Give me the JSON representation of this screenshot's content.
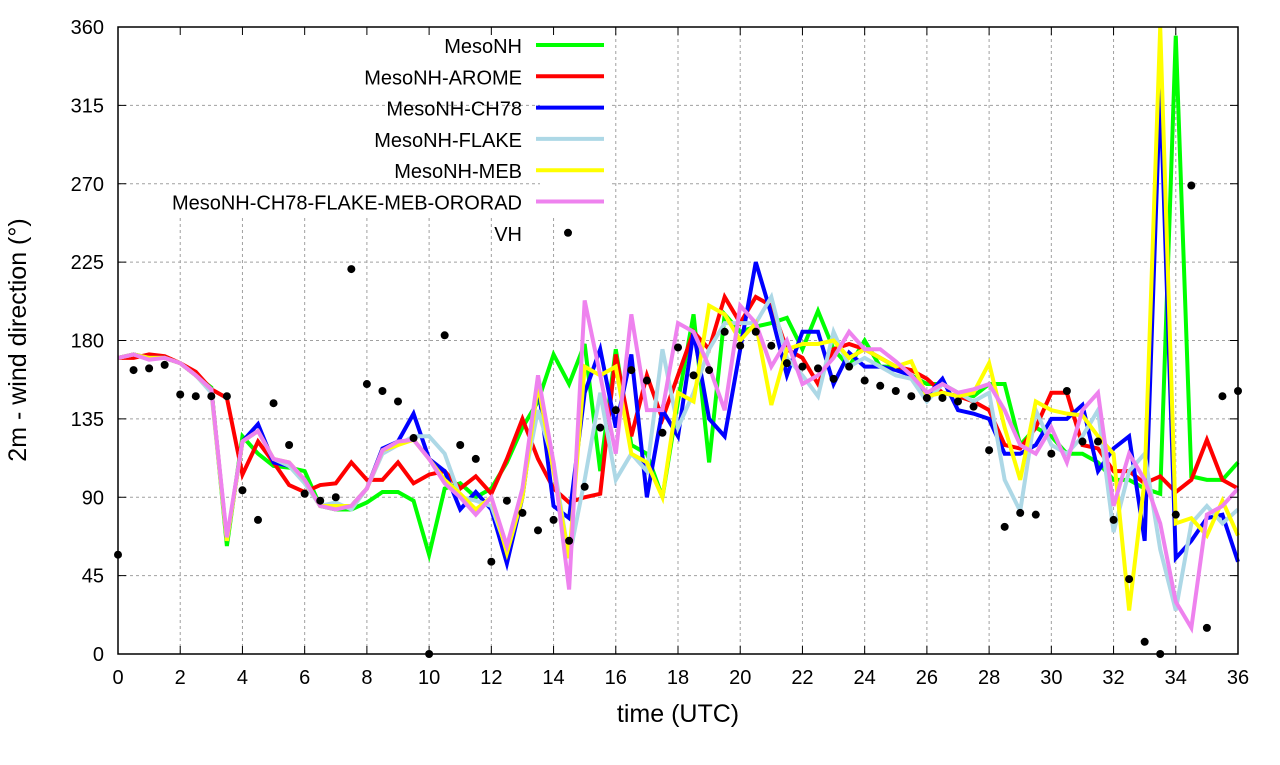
{
  "chart_data": {
    "type": "line",
    "title": "",
    "xlabel": "time (UTC)",
    "ylabel": "2m - wind direction (°)",
    "xlim": [
      0,
      36
    ],
    "ylim": [
      0,
      360
    ],
    "xticks": [
      0,
      2,
      4,
      6,
      8,
      10,
      12,
      14,
      16,
      18,
      20,
      22,
      24,
      26,
      28,
      30,
      32,
      34,
      36
    ],
    "yticks": [
      0,
      45,
      90,
      135,
      180,
      225,
      270,
      315,
      360
    ],
    "grid": true,
    "legend_position": "top-left",
    "x_step": 0.5,
    "series": [
      {
        "name": "MesoNH",
        "color": "#00ff00",
        "values": [
          170,
          172,
          170,
          170,
          167,
          160,
          153,
          62,
          125,
          115,
          108,
          107,
          105,
          85,
          83,
          83,
          87,
          93,
          93,
          88,
          57,
          95,
          98,
          90,
          95,
          110,
          130,
          145,
          172,
          155,
          178,
          105,
          175,
          120,
          115,
          90,
          145,
          195,
          110,
          195,
          185,
          188,
          190,
          193,
          175,
          197,
          175,
          165,
          180,
          165,
          165,
          160,
          155,
          155,
          150,
          148,
          155,
          155,
          120,
          130,
          125,
          115,
          115,
          110,
          100,
          100,
          95,
          92,
          355,
          102,
          100,
          100,
          110
        ]
      },
      {
        "name": "MesoNH-AROME",
        "color": "#ff0000",
        "values": [
          170,
          170,
          172,
          171,
          167,
          162,
          152,
          147,
          103,
          122,
          110,
          97,
          93,
          97,
          98,
          110,
          100,
          100,
          110,
          98,
          103,
          105,
          95,
          102,
          92,
          112,
          135,
          112,
          95,
          87,
          90,
          92,
          172,
          125,
          160,
          135,
          160,
          185,
          175,
          205,
          190,
          205,
          200,
          175,
          170,
          155,
          175,
          178,
          175,
          170,
          165,
          163,
          158,
          150,
          148,
          145,
          140,
          120,
          118,
          130,
          150,
          150,
          120,
          118,
          105,
          105,
          98,
          102,
          93,
          100,
          123,
          100,
          95
        ]
      },
      {
        "name": "MesoNH-CH78",
        "color": "#0000ff",
        "values": [
          170,
          172,
          170,
          170,
          167,
          160,
          152,
          65,
          122,
          132,
          110,
          108,
          100,
          85,
          85,
          85,
          95,
          118,
          122,
          138,
          112,
          105,
          83,
          93,
          83,
          52,
          90,
          155,
          85,
          78,
          150,
          175,
          130,
          172,
          90,
          140,
          125,
          185,
          135,
          125,
          175,
          225,
          195,
          160,
          185,
          185,
          155,
          173,
          165,
          165,
          163,
          160,
          148,
          158,
          140,
          138,
          135,
          115,
          115,
          120,
          135,
          135,
          143,
          105,
          118,
          125,
          65,
          325,
          55,
          65,
          78,
          80,
          53
        ]
      },
      {
        "name": "MesoNH-FLAKE",
        "color": "#add8e6",
        "values": [
          170,
          172,
          170,
          170,
          167,
          160,
          150,
          65,
          122,
          128,
          112,
          108,
          98,
          85,
          87,
          83,
          95,
          115,
          120,
          125,
          125,
          115,
          90,
          88,
          85,
          60,
          95,
          140,
          110,
          55,
          100,
          150,
          100,
          115,
          105,
          175,
          130,
          150,
          175,
          190,
          190,
          190,
          205,
          170,
          160,
          148,
          185,
          165,
          170,
          165,
          160,
          158,
          145,
          155,
          150,
          145,
          150,
          100,
          82,
          140,
          120,
          115,
          125,
          140,
          70,
          105,
          115,
          60,
          25,
          75,
          85,
          75,
          83
        ]
      },
      {
        "name": "MesoNH-MEB",
        "color": "#ffff00",
        "values": [
          170,
          172,
          170,
          170,
          167,
          160,
          152,
          65,
          122,
          128,
          112,
          110,
          100,
          85,
          85,
          85,
          95,
          117,
          120,
          123,
          112,
          100,
          92,
          83,
          90,
          58,
          90,
          155,
          105,
          55,
          165,
          160,
          165,
          115,
          110,
          90,
          150,
          145,
          200,
          195,
          180,
          190,
          143,
          175,
          178,
          178,
          180,
          170,
          175,
          170,
          165,
          168,
          148,
          150,
          148,
          150,
          167,
          130,
          100,
          145,
          140,
          138,
          137,
          125,
          115,
          25,
          100,
          360,
          75,
          78,
          68,
          88,
          68
        ]
      },
      {
        "name": "MesoNH-CH78-FLAKE-MEB-ORORAD",
        "color": "#ee82ee",
        "values": [
          170,
          172,
          169,
          170,
          167,
          160,
          152,
          67,
          122,
          128,
          112,
          110,
          100,
          85,
          83,
          85,
          95,
          117,
          122,
          123,
          112,
          98,
          90,
          80,
          90,
          62,
          95,
          160,
          110,
          37,
          203,
          160,
          115,
          195,
          140,
          140,
          190,
          185,
          165,
          140,
          200,
          190,
          165,
          180,
          155,
          160,
          170,
          185,
          175,
          175,
          168,
          160,
          150,
          155,
          150,
          152,
          155,
          140,
          120,
          115,
          130,
          110,
          140,
          150,
          85,
          115,
          100,
          75,
          30,
          15,
          80,
          85,
          95
        ]
      }
    ],
    "points": {
      "name": "VH",
      "color": "#000000",
      "values": [
        [
          0,
          57
        ],
        [
          0.5,
          163
        ],
        [
          1,
          164
        ],
        [
          1.5,
          166
        ],
        [
          2,
          149
        ],
        [
          2.5,
          148
        ],
        [
          3,
          148
        ],
        [
          3.5,
          148
        ],
        [
          4,
          94
        ],
        [
          4.5,
          77
        ],
        [
          5,
          144
        ],
        [
          5.5,
          120
        ],
        [
          6,
          92
        ],
        [
          6.5,
          88
        ],
        [
          7,
          90
        ],
        [
          7.5,
          221
        ],
        [
          8,
          155
        ],
        [
          8.5,
          151
        ],
        [
          9,
          145
        ],
        [
          9.5,
          124
        ],
        [
          10,
          0
        ],
        [
          10.5,
          183
        ],
        [
          11,
          120
        ],
        [
          11.5,
          112
        ],
        [
          12,
          53
        ],
        [
          12.5,
          88
        ],
        [
          13,
          81
        ],
        [
          13.5,
          71
        ],
        [
          14,
          77
        ],
        [
          14.5,
          65
        ],
        [
          15,
          96
        ],
        [
          15.5,
          130
        ],
        [
          16,
          140
        ],
        [
          16.5,
          163
        ],
        [
          17,
          157
        ],
        [
          17.5,
          127
        ],
        [
          18,
          176
        ],
        [
          18.5,
          160
        ],
        [
          19,
          163
        ],
        [
          19.5,
          185
        ],
        [
          20,
          177
        ],
        [
          20.5,
          185
        ],
        [
          21,
          177
        ],
        [
          21.5,
          167
        ],
        [
          22,
          165
        ],
        [
          22.5,
          164
        ],
        [
          23,
          158
        ],
        [
          23.5,
          165
        ],
        [
          24,
          157
        ],
        [
          24.5,
          154
        ],
        [
          25,
          151
        ],
        [
          25.5,
          148
        ],
        [
          26,
          147
        ],
        [
          26.5,
          147
        ],
        [
          27,
          145
        ],
        [
          27.5,
          142
        ],
        [
          28,
          117
        ],
        [
          28.5,
          73
        ],
        [
          29,
          81
        ],
        [
          29.5,
          80
        ],
        [
          30,
          115
        ],
        [
          30.5,
          151
        ],
        [
          31,
          122
        ],
        [
          31.5,
          122
        ],
        [
          32,
          77
        ],
        [
          32.5,
          43
        ],
        [
          33,
          7
        ],
        [
          33.5,
          0
        ],
        [
          34,
          80
        ],
        [
          34.5,
          269
        ],
        [
          35,
          15
        ],
        [
          35.5,
          148
        ],
        [
          36,
          151
        ]
      ]
    }
  }
}
